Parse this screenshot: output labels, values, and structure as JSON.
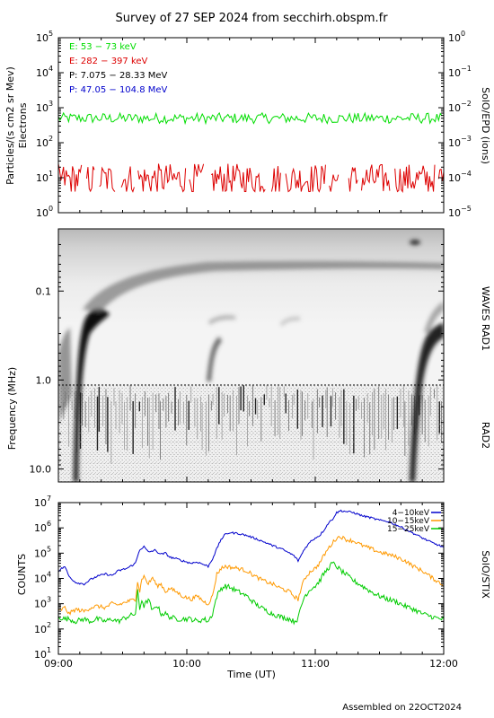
{
  "page": {
    "title": "Survey of 27 SEP 2024 from secchirh.obspm.fr",
    "footer": "Assembled on 22OCT2024"
  },
  "chart_data": [
    {
      "panel": "particles",
      "type": "line",
      "ylabel": "Particles/(s cm2 sr Mev)",
      "ylabel2": "Electrons",
      "right_label": "SolO/EPD (ions)",
      "log_y": true,
      "ylim": [
        1,
        100000
      ],
      "ylim_right": [
        1e-05,
        1
      ],
      "left_ticks": [
        {
          "base": "10",
          "exp": "0",
          "v": 1
        },
        {
          "base": "10",
          "exp": "1",
          "v": 10
        },
        {
          "base": "10",
          "exp": "2",
          "v": 100
        },
        {
          "base": "10",
          "exp": "3",
          "v": 1000
        },
        {
          "base": "10",
          "exp": "4",
          "v": 10000
        },
        {
          "base": "10",
          "exp": "5",
          "v": 100000
        }
      ],
      "right_ticks": [
        {
          "base": "10",
          "exp": "−5",
          "v": 1e-05
        },
        {
          "base": "10",
          "exp": "−4",
          "v": 0.0001
        },
        {
          "base": "10",
          "exp": "−3",
          "v": 0.001
        },
        {
          "base": "10",
          "exp": "−2",
          "v": 0.01
        },
        {
          "base": "10",
          "exp": "−1",
          "v": 0.1
        },
        {
          "base": "10",
          "exp": "0",
          "v": 1
        }
      ],
      "legend_position": "top-left",
      "series": [
        {
          "name": "E: 53 − 73 keV",
          "color": "#00dd00",
          "level": 500,
          "spread": 0.15
        },
        {
          "name": "E: 282 − 397 keV",
          "color": "#dd0000",
          "level": 10,
          "spread": 0.45
        },
        {
          "name": "P: 7.075 − 28.33 MeV",
          "color": "#000000"
        },
        {
          "name": "P: 47.05 − 104.8 MeV",
          "color": "#0000cc"
        }
      ]
    },
    {
      "panel": "radio",
      "type": "heatmap",
      "ylabel": "Frequency (MHz)",
      "right_label_top": "WAVES RAD1",
      "right_label_bottom": "RAD2",
      "log_y": true,
      "y_inverted": true,
      "ylim": [
        0.02,
        14
      ],
      "y_ticks": [
        {
          "label": "0.1",
          "v": 0.1
        },
        {
          "label": "1.0",
          "v": 1.0
        },
        {
          "label": "10.0",
          "v": 10.0
        }
      ],
      "dashed_boundary_mhz": 1.0,
      "features": [
        {
          "kind": "type III burst",
          "start_min": 9,
          "drift_min": 25,
          "intensity": "strong"
        },
        {
          "kind": "type III burst",
          "start_min": 33,
          "drift_min": 6,
          "intensity": "weak"
        },
        {
          "kind": "type III burst",
          "start_min": 76,
          "drift_min": 6,
          "intensity": "weak"
        },
        {
          "kind": "type III burst",
          "start_min": 168,
          "drift_min": 12,
          "intensity": "strong"
        }
      ]
    },
    {
      "panel": "stix",
      "type": "line",
      "ylabel": "COUNTS",
      "right_label": "SolO/STIX",
      "xlabel": "Time (UT)",
      "log_y": true,
      "ylim": [
        10,
        10000000
      ],
      "y_ticks": [
        {
          "base": "10",
          "exp": "1",
          "v": 10
        },
        {
          "base": "10",
          "exp": "2",
          "v": 100
        },
        {
          "base": "10",
          "exp": "3",
          "v": 1000
        },
        {
          "base": "10",
          "exp": "4",
          "v": 10000
        },
        {
          "base": "10",
          "exp": "5",
          "v": 100000
        },
        {
          "base": "10",
          "exp": "6",
          "v": 1000000
        },
        {
          "base": "10",
          "exp": "7",
          "v": 10000000
        }
      ],
      "x_ticks": [
        "09:00",
        "10:00",
        "11:00",
        "12:00"
      ],
      "legend_position": "top-right",
      "series": [
        {
          "name": "4−10keV",
          "color": "#0000cc",
          "points": [
            [
              0,
              20000
            ],
            [
              3,
              30000
            ],
            [
              5,
              12000
            ],
            [
              8,
              7000
            ],
            [
              12,
              6000
            ],
            [
              15,
              9000
            ],
            [
              18,
              12000
            ],
            [
              22,
              15000
            ],
            [
              25,
              13000
            ],
            [
              28,
              20000
            ],
            [
              32,
              25000
            ],
            [
              36,
              40000
            ],
            [
              38,
              140000
            ],
            [
              40,
              180000
            ],
            [
              42,
              110000
            ],
            [
              45,
              130000
            ],
            [
              48,
              90000
            ],
            [
              50,
              100000
            ],
            [
              52,
              70000
            ],
            [
              55,
              60000
            ],
            [
              58,
              50000
            ],
            [
              62,
              40000
            ],
            [
              65,
              45000
            ],
            [
              68,
              35000
            ],
            [
              70,
              30000
            ],
            [
              72,
              60000
            ],
            [
              74,
              150000
            ],
            [
              76,
              350000
            ],
            [
              78,
              550000
            ],
            [
              80,
              650000
            ],
            [
              84,
              600000
            ],
            [
              88,
              500000
            ],
            [
              92,
              380000
            ],
            [
              96,
              280000
            ],
            [
              100,
              200000
            ],
            [
              104,
              150000
            ],
            [
              108,
              100000
            ],
            [
              110,
              80000
            ],
            [
              112,
              50000
            ],
            [
              113,
              70000
            ],
            [
              115,
              150000
            ],
            [
              118,
              300000
            ],
            [
              120,
              400000
            ],
            [
              122,
              500000
            ],
            [
              124,
              800000
            ],
            [
              126,
              1500000
            ],
            [
              128,
              2200000
            ],
            [
              130,
              4000000
            ],
            [
              132,
              4800000
            ],
            [
              134,
              4500000
            ],
            [
              138,
              4000000
            ],
            [
              142,
              3000000
            ],
            [
              146,
              2500000
            ],
            [
              150,
              2000000
            ],
            [
              154,
              1800000
            ],
            [
              158,
              1300000
            ],
            [
              162,
              900000
            ],
            [
              166,
              600000
            ],
            [
              170,
              400000
            ],
            [
              175,
              250000
            ],
            [
              178,
              200000
            ],
            [
              180,
              170000
            ]
          ]
        },
        {
          "name": "10−15keV",
          "color": "#ff9900",
          "points": [
            [
              0,
              500
            ],
            [
              3,
              700
            ],
            [
              5,
              400
            ],
            [
              8,
              600
            ],
            [
              12,
              500
            ],
            [
              15,
              700
            ],
            [
              18,
              800
            ],
            [
              22,
              700
            ],
            [
              25,
              1000
            ],
            [
              28,
              900
            ],
            [
              32,
              1200
            ],
            [
              36,
              1500
            ],
            [
              37,
              8000
            ],
            [
              38,
              3000
            ],
            [
              39,
              10000
            ],
            [
              40,
              12000
            ],
            [
              42,
              6000
            ],
            [
              44,
              11000
            ],
            [
              46,
              5000
            ],
            [
              48,
              6000
            ],
            [
              50,
              3000
            ],
            [
              52,
              4000
            ],
            [
              55,
              3000
            ],
            [
              58,
              2000
            ],
            [
              62,
              1500
            ],
            [
              65,
              2000
            ],
            [
              68,
              1200
            ],
            [
              70,
              1000
            ],
            [
              72,
              2000
            ],
            [
              74,
              15000
            ],
            [
              76,
              25000
            ],
            [
              78,
              30000
            ],
            [
              80,
              28000
            ],
            [
              84,
              25000
            ],
            [
              88,
              20000
            ],
            [
              92,
              12000
            ],
            [
              96,
              8000
            ],
            [
              100,
              6000
            ],
            [
              104,
              4000
            ],
            [
              108,
              3000
            ],
            [
              110,
              2000
            ],
            [
              112,
              1500
            ],
            [
              113,
              3000
            ],
            [
              115,
              10000
            ],
            [
              118,
              20000
            ],
            [
              120,
              25000
            ],
            [
              122,
              40000
            ],
            [
              124,
              80000
            ],
            [
              126,
              150000
            ],
            [
              128,
              250000
            ],
            [
              130,
              400000
            ],
            [
              132,
              450000
            ],
            [
              134,
              350000
            ],
            [
              138,
              300000
            ],
            [
              142,
              200000
            ],
            [
              146,
              150000
            ],
            [
              150,
              110000
            ],
            [
              154,
              90000
            ],
            [
              158,
              70000
            ],
            [
              162,
              50000
            ],
            [
              166,
              30000
            ],
            [
              170,
              20000
            ],
            [
              175,
              10000
            ],
            [
              178,
              7000
            ],
            [
              180,
              5000
            ]
          ]
        },
        {
          "name": "15−25keV",
          "color": "#00cc00",
          "points": [
            [
              0,
              300
            ],
            [
              3,
              250
            ],
            [
              5,
              250
            ],
            [
              8,
              200
            ],
            [
              12,
              250
            ],
            [
              15,
              200
            ],
            [
              18,
              250
            ],
            [
              22,
              200
            ],
            [
              25,
              250
            ],
            [
              28,
              200
            ],
            [
              32,
              300
            ],
            [
              36,
              400
            ],
            [
              37,
              3000
            ],
            [
              38,
              600
            ],
            [
              39,
              1500
            ],
            [
              40,
              800
            ],
            [
              42,
              1500
            ],
            [
              44,
              500
            ],
            [
              46,
              900
            ],
            [
              48,
              400
            ],
            [
              50,
              400
            ],
            [
              52,
              300
            ],
            [
              55,
              250
            ],
            [
              58,
              250
            ],
            [
              62,
              250
            ],
            [
              65,
              200
            ],
            [
              68,
              250
            ],
            [
              70,
              200
            ],
            [
              72,
              400
            ],
            [
              74,
              2000
            ],
            [
              76,
              4000
            ],
            [
              78,
              5000
            ],
            [
              80,
              4500
            ],
            [
              84,
              3000
            ],
            [
              88,
              2000
            ],
            [
              92,
              1000
            ],
            [
              96,
              600
            ],
            [
              100,
              400
            ],
            [
              104,
              300
            ],
            [
              108,
              250
            ],
            [
              110,
              200
            ],
            [
              112,
              250
            ],
            [
              113,
              600
            ],
            [
              115,
              2000
            ],
            [
              118,
              4000
            ],
            [
              120,
              5000
            ],
            [
              122,
              8000
            ],
            [
              124,
              15000
            ],
            [
              126,
              25000
            ],
            [
              128,
              40000
            ],
            [
              130,
              30000
            ],
            [
              132,
              20000
            ],
            [
              134,
              15000
            ],
            [
              138,
              8000
            ],
            [
              142,
              5000
            ],
            [
              146,
              3000
            ],
            [
              150,
              2000
            ],
            [
              154,
              1500
            ],
            [
              158,
              1200
            ],
            [
              162,
              800
            ],
            [
              166,
              600
            ],
            [
              170,
              400
            ],
            [
              175,
              300
            ],
            [
              178,
              250
            ],
            [
              180,
              250
            ]
          ]
        }
      ]
    }
  ]
}
